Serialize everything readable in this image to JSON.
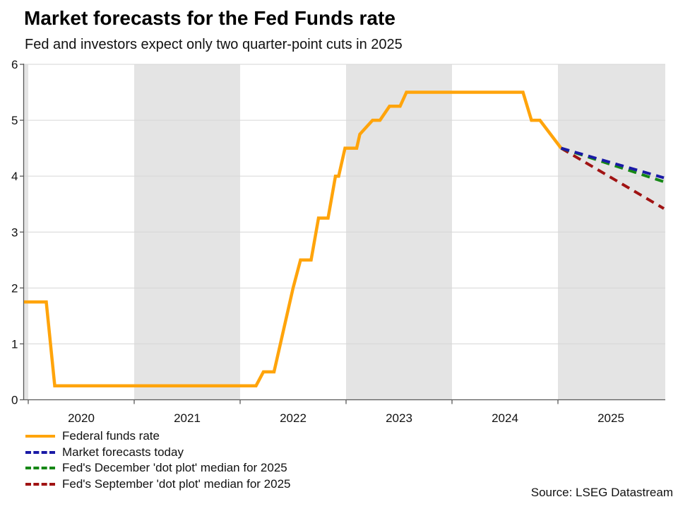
{
  "chart_data": {
    "type": "line",
    "title": "Market forecasts for the Fed Funds rate",
    "subtitle": "Fed and investors expect only two quarter-point cuts in 2025",
    "source": "Source: LSEG Datastream",
    "x_unit": "year (decimal)",
    "xlim": [
      2019.957,
      2026.013
    ],
    "ylim": [
      0,
      6
    ],
    "y_ticks": [
      0,
      1,
      2,
      3,
      4,
      5,
      6
    ],
    "x_ticks": [
      2020,
      2021,
      2022,
      2023,
      2024,
      2025
    ],
    "grid": "horizontal",
    "legend_position": "bottom-left",
    "shaded_year_bands": [
      [
        2019.957,
        2020
      ],
      [
        2021,
        2022
      ],
      [
        2023,
        2024
      ],
      [
        2025,
        2026.013
      ]
    ],
    "colors": {
      "band": "#E4E4E4",
      "grid": "#D6D6D6",
      "axis": "#595959"
    },
    "series": [
      {
        "name": "Federal funds rate",
        "color": "#FFA40B",
        "style": "solid",
        "width": 4.5,
        "points": [
          [
            2019.96,
            1.75
          ],
          [
            2020.17,
            1.75
          ],
          [
            2020.25,
            0.25
          ],
          [
            2022.15,
            0.25
          ],
          [
            2022.22,
            0.5
          ],
          [
            2022.32,
            0.5
          ],
          [
            2022.38,
            1.0
          ],
          [
            2022.5,
            2.0
          ],
          [
            2022.57,
            2.5
          ],
          [
            2022.67,
            2.5
          ],
          [
            2022.74,
            3.25
          ],
          [
            2022.83,
            3.25
          ],
          [
            2022.9,
            4.0
          ],
          [
            2022.93,
            4.0
          ],
          [
            2022.99,
            4.5
          ],
          [
            2023.1,
            4.5
          ],
          [
            2023.13,
            4.75
          ],
          [
            2023.25,
            5.0
          ],
          [
            2023.32,
            5.0
          ],
          [
            2023.41,
            5.25
          ],
          [
            2023.51,
            5.25
          ],
          [
            2023.57,
            5.5
          ],
          [
            2024.67,
            5.5
          ],
          [
            2024.75,
            5.0
          ],
          [
            2024.83,
            5.0
          ],
          [
            2025.03,
            4.5
          ]
        ]
      },
      {
        "name": "Market forecasts today",
        "color": "#1A1AA6",
        "style": "dashed",
        "width": 4,
        "points": [
          [
            2025.03,
            4.5
          ],
          [
            2026.0,
            3.97
          ]
        ]
      },
      {
        "name": "Fed's December 'dot plot' median for 2025",
        "color": "#168716",
        "style": "dashed",
        "width": 4,
        "points": [
          [
            2025.03,
            4.5
          ],
          [
            2026.0,
            3.9
          ]
        ]
      },
      {
        "name": "Fed's September 'dot plot' median for 2025",
        "color": "#A01313",
        "style": "dashed",
        "width": 4,
        "points": [
          [
            2025.03,
            4.5
          ],
          [
            2026.0,
            3.42
          ]
        ]
      }
    ]
  }
}
